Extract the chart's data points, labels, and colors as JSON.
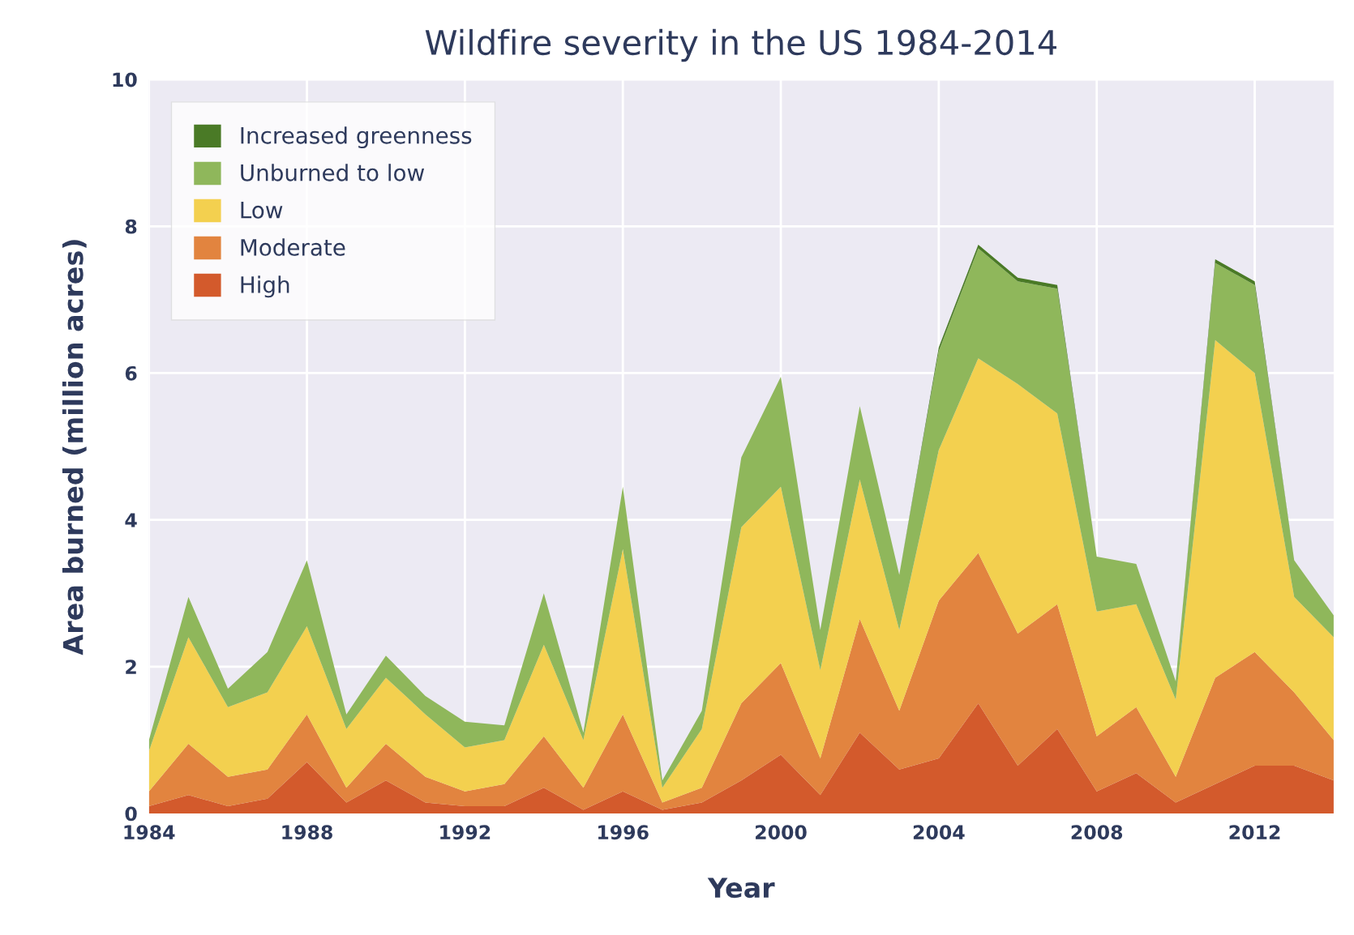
{
  "chart_data": {
    "type": "area",
    "stacked": true,
    "title": "Wildfire severity in the US 1984-2014",
    "xlabel": "Year",
    "ylabel": "Area burned (million acres)",
    "x": [
      1984,
      1985,
      1986,
      1987,
      1988,
      1989,
      1990,
      1991,
      1992,
      1993,
      1994,
      1995,
      1996,
      1997,
      1998,
      1999,
      2000,
      2001,
      2002,
      2003,
      2004,
      2005,
      2006,
      2007,
      2008,
      2009,
      2010,
      2011,
      2012,
      2013,
      2014
    ],
    "series": [
      {
        "name": "High",
        "color": "#d35a2c",
        "values": [
          0.1,
          0.25,
          0.1,
          0.2,
          0.7,
          0.15,
          0.45,
          0.15,
          0.1,
          0.1,
          0.35,
          0.05,
          0.3,
          0.05,
          0.15,
          0.45,
          0.8,
          0.25,
          1.1,
          0.6,
          0.75,
          1.5,
          0.65,
          1.15,
          0.3,
          0.55,
          0.15,
          0.4,
          0.65,
          0.65,
          0.45
        ]
      },
      {
        "name": "Moderate",
        "color": "#e2843f",
        "values": [
          0.2,
          0.7,
          0.4,
          0.4,
          0.65,
          0.2,
          0.5,
          0.35,
          0.2,
          0.3,
          0.7,
          0.3,
          1.05,
          0.1,
          0.2,
          1.05,
          1.25,
          0.5,
          1.55,
          0.8,
          2.15,
          2.05,
          1.8,
          1.7,
          0.75,
          0.9,
          0.35,
          1.45,
          1.55,
          1.0,
          0.55
        ]
      },
      {
        "name": "Low",
        "color": "#f3d04f",
        "values": [
          0.55,
          1.45,
          0.95,
          1.05,
          1.2,
          0.8,
          0.9,
          0.85,
          0.6,
          0.6,
          1.25,
          0.65,
          2.25,
          0.2,
          0.8,
          2.4,
          2.4,
          1.2,
          1.9,
          1.1,
          2.05,
          2.65,
          3.4,
          2.6,
          1.7,
          1.4,
          1.05,
          4.6,
          3.8,
          1.3,
          1.4
        ]
      },
      {
        "name": "Unburned to low",
        "color": "#8fb75b",
        "values": [
          0.15,
          0.55,
          0.25,
          0.55,
          0.9,
          0.2,
          0.3,
          0.25,
          0.35,
          0.2,
          0.7,
          0.1,
          0.85,
          0.1,
          0.25,
          0.95,
          1.5,
          0.55,
          1.0,
          0.75,
          1.35,
          1.5,
          1.4,
          1.7,
          0.75,
          0.55,
          0.25,
          1.05,
          1.2,
          0.5,
          0.3
        ]
      },
      {
        "name": "Increased greenness",
        "color": "#4a7a26",
        "values": [
          0,
          0,
          0,
          0,
          0,
          0,
          0,
          0,
          0,
          0,
          0,
          0,
          0,
          0,
          0,
          0,
          0,
          0,
          0,
          0,
          0.05,
          0.05,
          0.05,
          0.05,
          0,
          0,
          0,
          0.05,
          0.05,
          0,
          0
        ]
      }
    ],
    "xlim": [
      1984,
      2014
    ],
    "xticks": [
      1984,
      1988,
      1992,
      1996,
      2000,
      2004,
      2008,
      2012
    ],
    "ylim": [
      0,
      10
    ],
    "yticks": [
      0,
      2,
      4,
      6,
      8,
      10
    ],
    "grid": true,
    "legend": "top left"
  }
}
